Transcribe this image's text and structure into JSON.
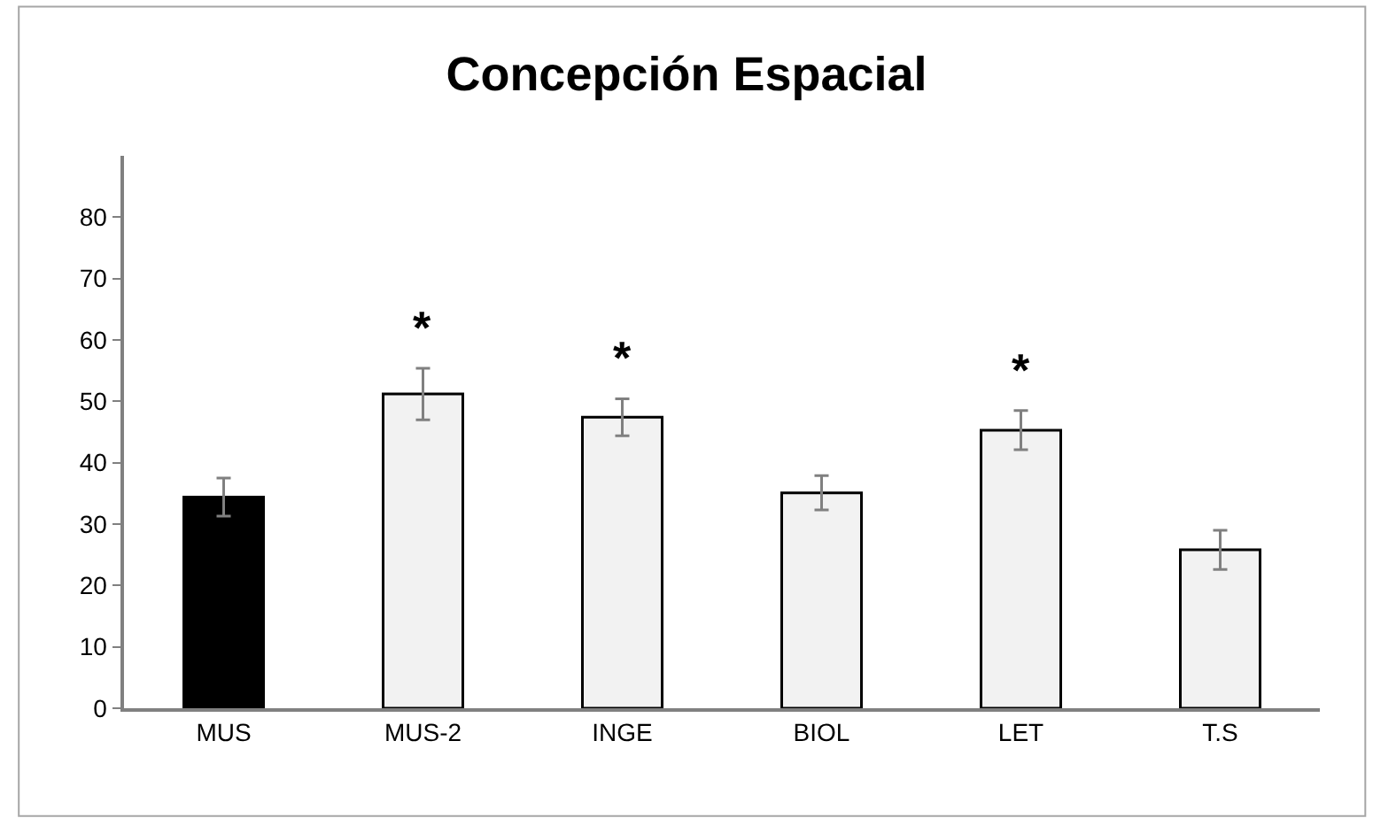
{
  "chart_data": {
    "type": "bar",
    "title": "Concepción Espacial",
    "categories": [
      "MUS",
      "MUS-2",
      "INGE",
      "BIOL",
      "LET",
      "T.S"
    ],
    "values": [
      34.4,
      51.2,
      47.4,
      35.1,
      45.3,
      25.8
    ],
    "colors": [
      "#000000",
      "#f2f2f2",
      "#f2f2f2",
      "#f2f2f2",
      "#f2f2f2",
      "#f2f2f2"
    ],
    "errors": [
      3.1,
      4.2,
      3.0,
      2.8,
      3.2,
      3.2
    ],
    "ylim": [
      0,
      90
    ],
    "yticks": [
      0,
      10,
      20,
      30,
      40,
      50,
      60,
      70,
      80
    ],
    "value_labels": [
      null,
      "*",
      "*",
      null,
      "*",
      null
    ]
  }
}
